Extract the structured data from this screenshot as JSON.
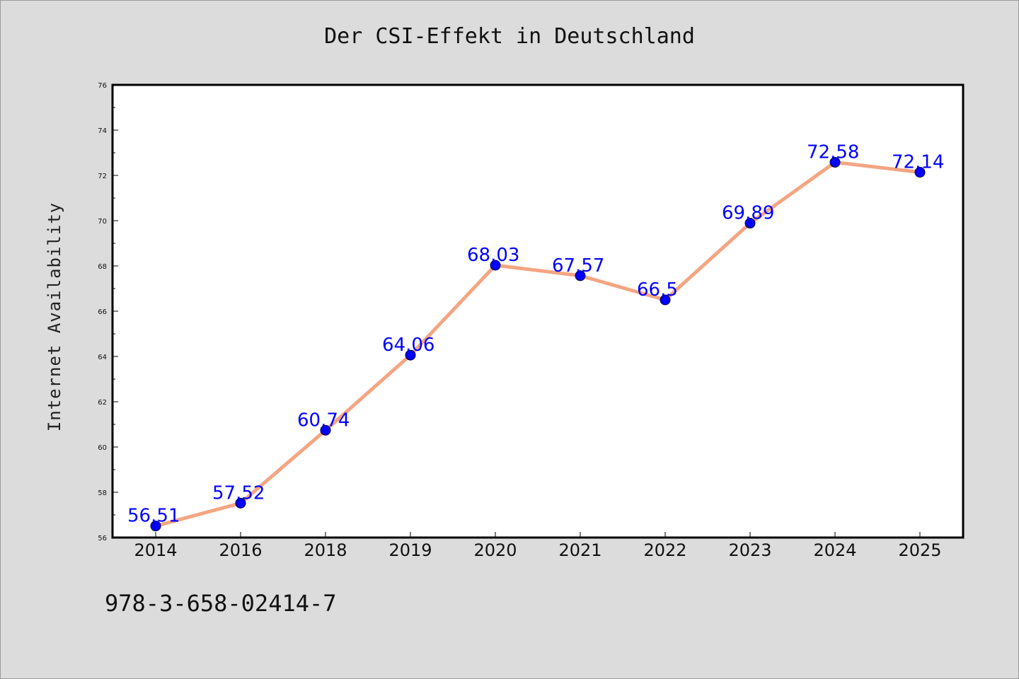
{
  "chart_data": {
    "type": "line",
    "title": "Der CSI-Effekt in Deutschland",
    "xlabel": "",
    "ylabel": "Internet Availability",
    "categories": [
      "2014",
      "2016",
      "2018",
      "2019",
      "2020",
      "2021",
      "2022",
      "2023",
      "2024",
      "2025"
    ],
    "series": [
      {
        "values": [
          56.51,
          57.52,
          60.74,
          64.06,
          68.03,
          67.57,
          66.5,
          69.89,
          72.58,
          72.14
        ],
        "data_labels": [
          "56.51",
          "57.52",
          "60.74",
          "64.06",
          "68.03",
          "67.57",
          "66.5",
          "69.89",
          "72.58",
          "72.14"
        ],
        "line_color": "#f4a582",
        "marker_color": "#0000ff"
      }
    ],
    "ylim": [
      56,
      76
    ],
    "yticks": [
      "56",
      "58",
      "60",
      "62",
      "64",
      "66",
      "68",
      "70",
      "72",
      "74",
      "76"
    ],
    "grid": false,
    "legend": "none"
  },
  "footer_text": "978-3-658-02414-7",
  "colors": {
    "background": "#dcdcdc",
    "plot_background": "#ffffff",
    "line": "#f4a582",
    "marker": "#0000ff",
    "data_label": "#0000ff"
  }
}
